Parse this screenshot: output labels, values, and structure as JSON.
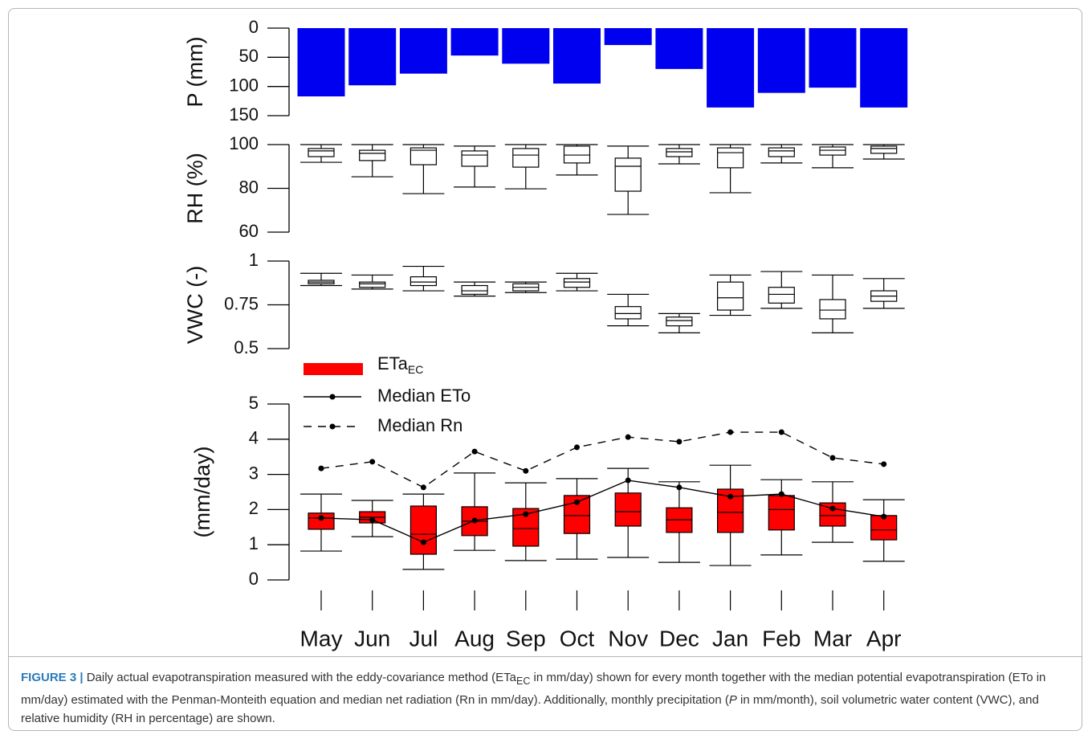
{
  "chart_data": [
    {
      "type": "bar",
      "y_label": "P (mm)",
      "y_inverted": true,
      "color": "#0000f0",
      "values": [
        117,
        98,
        78,
        47,
        61,
        95,
        29,
        70,
        136,
        111,
        102,
        136
      ],
      "ylim": [
        0,
        150
      ],
      "yticks": [
        0,
        50,
        100,
        150
      ]
    },
    {
      "type": "box",
      "y_label": "RH (%)",
      "ylim": [
        60,
        100
      ],
      "yticks": [
        60,
        80,
        100
      ],
      "boxes": {
        "color": "#ffffff",
        "low": [
          91.9,
          85.3,
          77.6,
          80.6,
          79.8,
          86.1,
          68.1,
          91.2,
          78.0,
          91.6,
          89.4,
          93.4
        ],
        "q1": [
          94.5,
          92.7,
          90.8,
          90.1,
          89.7,
          91.6,
          78.7,
          94.5,
          89.4,
          94.5,
          95.2,
          96.0
        ],
        "median": [
          97.1,
          96.0,
          97.4,
          95.2,
          95.2,
          95.2,
          90.1,
          96.7,
          96.3,
          97.1,
          97.4,
          98.2
        ],
        "q3": [
          98.2,
          97.4,
          98.5,
          97.1,
          98.2,
          99.3,
          93.8,
          98.2,
          98.5,
          98.5,
          98.9,
          99.3
        ],
        "high": [
          100,
          100,
          100,
          99.3,
          100,
          100,
          99.3,
          100,
          100,
          100,
          100,
          100
        ]
      }
    },
    {
      "type": "box",
      "y_label": "VWC (-)",
      "ylim": [
        0.5,
        1
      ],
      "yticks": [
        0.5,
        0.75,
        1
      ],
      "boxes": {
        "color": "#ffffff",
        "low": [
          0.86,
          0.84,
          0.83,
          0.8,
          0.82,
          0.83,
          0.63,
          0.59,
          0.69,
          0.73,
          0.59,
          0.73
        ],
        "q1": [
          0.87,
          0.85,
          0.86,
          0.81,
          0.83,
          0.85,
          0.67,
          0.63,
          0.72,
          0.76,
          0.67,
          0.77
        ],
        "median": [
          0.88,
          0.87,
          0.88,
          0.83,
          0.85,
          0.88,
          0.7,
          0.66,
          0.79,
          0.81,
          0.72,
          0.8
        ],
        "q3": [
          0.89,
          0.88,
          0.91,
          0.86,
          0.87,
          0.9,
          0.74,
          0.68,
          0.88,
          0.85,
          0.78,
          0.83
        ],
        "high": [
          0.93,
          0.92,
          0.97,
          0.88,
          0.88,
          0.93,
          0.81,
          0.7,
          0.92,
          0.94,
          0.92,
          0.9
        ]
      }
    },
    {
      "type": "box",
      "y_label": "(mm/day)",
      "ylim": [
        0,
        5
      ],
      "yticks": [
        0,
        1,
        2,
        3,
        4,
        5
      ],
      "categories": [
        "May",
        "Jun",
        "Jul",
        "Aug",
        "Sep",
        "Oct",
        "Nov",
        "Dec",
        "Jan",
        "Feb",
        "Mar",
        "Apr"
      ],
      "boxes": {
        "name": "ETa",
        "name_sub": "EC",
        "color": "#ff0000",
        "low": [
          0.82,
          1.23,
          0.3,
          0.84,
          0.55,
          0.59,
          0.64,
          0.5,
          0.41,
          0.71,
          1.07,
          0.53
        ],
        "q1": [
          1.44,
          1.62,
          0.73,
          1.26,
          0.96,
          1.32,
          1.53,
          1.35,
          1.35,
          1.42,
          1.53,
          1.14
        ],
        "median": [
          1.76,
          1.78,
          1.3,
          1.67,
          1.46,
          1.83,
          1.94,
          1.71,
          1.92,
          2.0,
          1.83,
          1.42
        ],
        "q3": [
          1.9,
          1.94,
          2.1,
          2.08,
          2.03,
          2.4,
          2.47,
          2.05,
          2.58,
          2.4,
          2.19,
          1.83
        ],
        "high": [
          2.44,
          2.26,
          2.44,
          3.04,
          2.76,
          2.88,
          3.17,
          2.79,
          3.26,
          2.85,
          2.79,
          2.28
        ]
      },
      "series": [
        {
          "name": "Median ETo",
          "color": "#000000",
          "dash": "solid",
          "values": [
            1.76,
            1.71,
            1.07,
            1.69,
            1.87,
            2.21,
            2.83,
            2.63,
            2.37,
            2.44,
            2.03,
            1.8
          ]
        },
        {
          "name": "Median Rn",
          "color": "#000000",
          "dash": "dashed",
          "values": [
            3.17,
            3.36,
            2.63,
            3.65,
            3.1,
            3.77,
            4.06,
            3.93,
            4.2,
            4.2,
            3.47,
            3.29
          ]
        }
      ]
    }
  ],
  "caption": {
    "label": "FIGURE 3 |",
    "parts": [
      " Daily actual evapotranspiration measured with the eddy-covariance method (ETa",
      "EC",
      " in mm/day) shown for every month together with the median potential evapotranspiration (ETo in mm/day) estimated with the Penman-Monteith equation and median net radiation (Rn in mm/day). Additionally, monthly precipitation (",
      "P",
      " in mm/month), soil volumetric water content (VWC), and relative humidity (RH in percentage) are shown."
    ]
  }
}
